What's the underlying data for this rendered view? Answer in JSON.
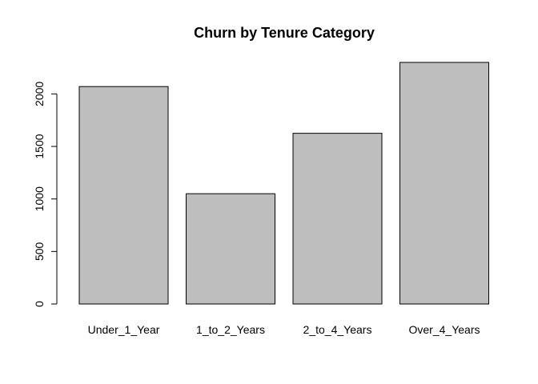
{
  "chart_data": {
    "type": "bar",
    "title": "Churn by Tenure Category",
    "xlabel": "",
    "ylabel": "",
    "categories": [
      "Under_1_Year",
      "1_to_2_Years",
      "2_to_4_Years",
      "Over_4_Years"
    ],
    "values": [
      2070,
      1050,
      1625,
      2300
    ],
    "yticks": [
      0,
      500,
      1000,
      1500,
      2000
    ],
    "ylim": [
      0,
      2300
    ],
    "grid": false,
    "colors": {
      "bar_fill": "#bebebe",
      "bar_stroke": "#000000"
    }
  }
}
